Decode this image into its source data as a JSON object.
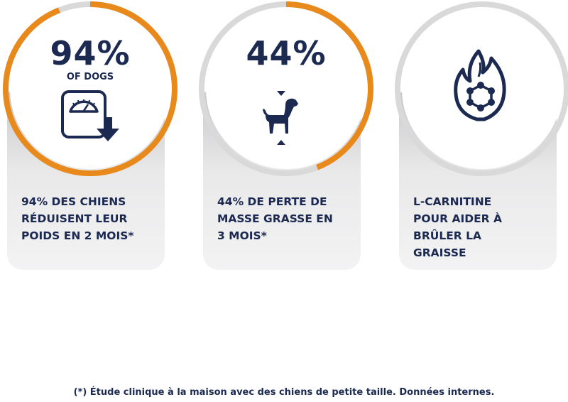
{
  "cards": [
    {
      "stat": "94%",
      "sub": "OF DOGS",
      "caption": "94% DES CHIENS\nRÉDUISENT LEUR\nPOIDS EN 2 MOIS*",
      "icon": "scale-weight-down-icon",
      "ring_progress": 0.94
    },
    {
      "stat": "44%",
      "caption": "44% DE PERTE DE\nMASSE GRASSE EN\n3 MOIS*",
      "icon": "dog-icon",
      "ring_progress": 0.44
    },
    {
      "caption": "L-CARNITINE\nPOUR AIDER À\nBRÛLER LA\nGRAISSE",
      "icon": "flame-molecule-icon",
      "ring_progress": 0
    }
  ],
  "footnote": "(*) Étude clinique à la maison avec des chiens de petite taille. Données internes.",
  "colors": {
    "accent": "#e8891c",
    "track": "#d9d9da",
    "text": "#1c2a52"
  }
}
